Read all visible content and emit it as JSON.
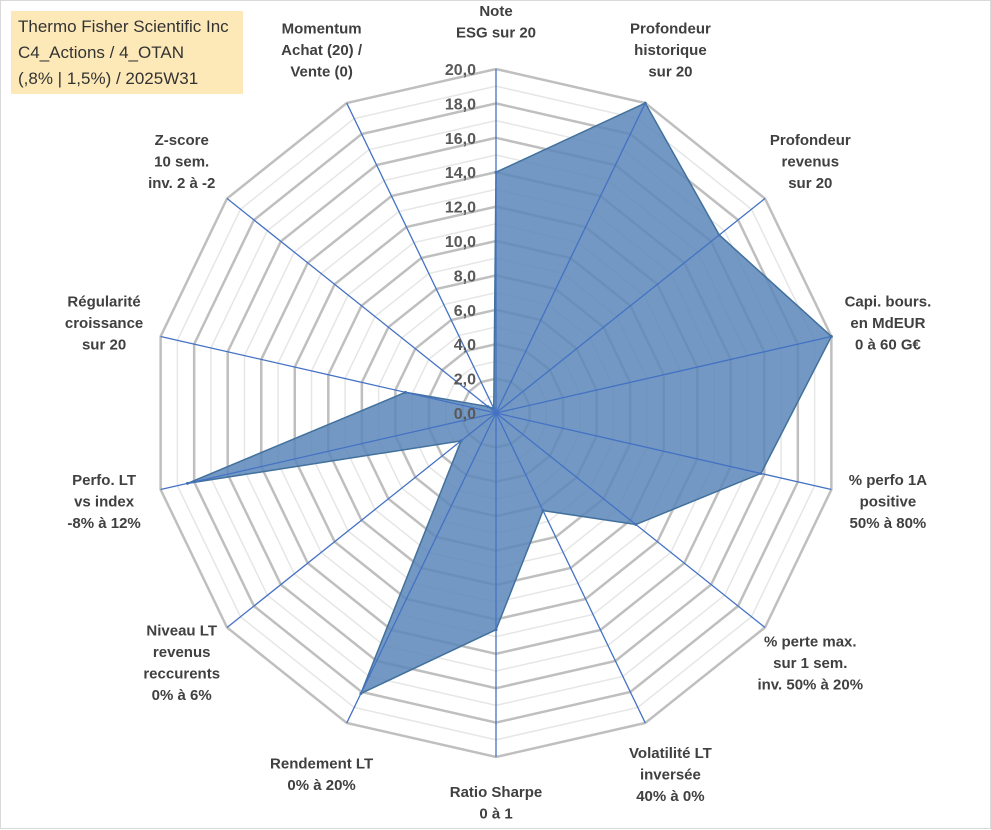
{
  "title_box": {
    "lines": [
      "Thermo Fisher Scientific Inc",
      "C4_Actions / 4_OTAN",
      "(,8% | 1,5%) / 2025W31"
    ],
    "background": "#fde9b8"
  },
  "chart_data": {
    "type": "radar",
    "axes": [
      [
        "Note",
        "ESG sur 20"
      ],
      [
        "Profondeur",
        "historique",
        "sur 20"
      ],
      [
        "Profondeur",
        "revenus",
        "sur 20"
      ],
      [
        "Capi. bours.",
        "en MdEUR",
        "0 à 60 G€"
      ],
      [
        "% perfo 1A",
        "positive",
        "50% à 80%"
      ],
      [
        "% perte max.",
        "sur 1 sem.",
        "inv. 50% à 20%"
      ],
      [
        "Volatilité LT",
        "inversée",
        "40% à 0%"
      ],
      [
        "Ratio Sharpe",
        "0 à 1"
      ],
      [
        "Rendement LT",
        "0% à 20%"
      ],
      [
        "Niveau LT",
        "revenus",
        "reccurents",
        "0% à 6%"
      ],
      [
        "Perfo. LT",
        "vs index",
        "-8% à 12%"
      ],
      [
        "Régularité",
        "croissance",
        "sur 20"
      ],
      [
        "Z-score",
        "10 sem.",
        "inv. 2 à -2"
      ],
      [
        "Momentum",
        "Achat (20) /",
        "Vente (0)"
      ]
    ],
    "series": [
      {
        "values": [
          14.0,
          20.0,
          16.6,
          20.0,
          15.8,
          10.4,
          6.3,
          12.6,
          18.1,
          2.6,
          18.4,
          5.4,
          0.6,
          0.3
        ]
      }
    ],
    "rlim": [
      0,
      20
    ],
    "ticks": [
      "0,0",
      "2,0",
      "4,0",
      "6,0",
      "8,0",
      "10,0",
      "12,0",
      "14,0",
      "16,0",
      "18,0",
      "20,0"
    ],
    "grid": true,
    "colors": {
      "fill": "#5b86b8",
      "edge": "#41719c",
      "spoke": "#4472c4",
      "major_grid": "#bfbfbf",
      "minor_grid": "#e6e6e6"
    }
  }
}
